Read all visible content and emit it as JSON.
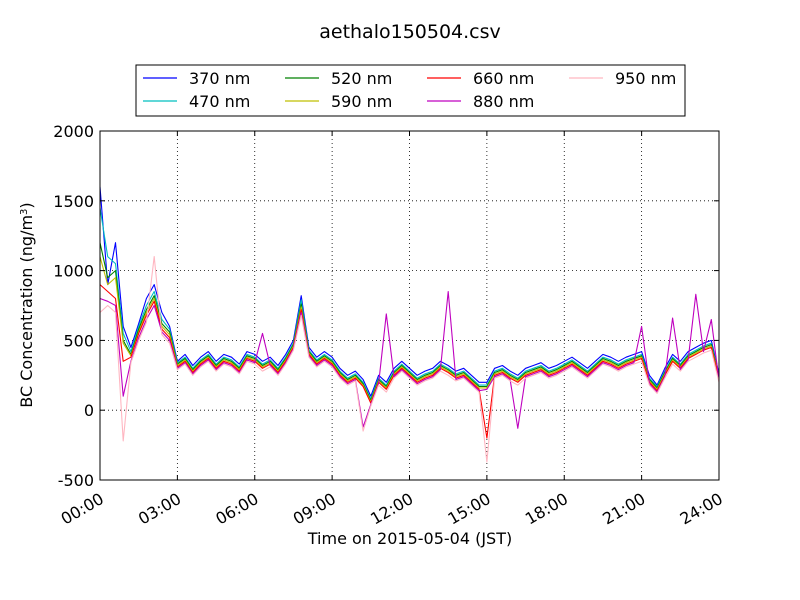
{
  "chart_data": {
    "type": "line",
    "title": "aethalo150504.csv",
    "xlabel": "Time on 2015-05-04 (JST)",
    "ylabel": "BC Concentration (ng/m",
    "ylabel_sup": "3",
    "ylabel_tail": ")",
    "xlim": [
      0,
      24
    ],
    "ylim": [
      -500,
      2000
    ],
    "x_ticks": [
      0,
      3,
      6,
      9,
      12,
      15,
      18,
      21,
      24
    ],
    "x_tick_labels": [
      "00:00",
      "03:00",
      "06:00",
      "09:00",
      "12:00",
      "15:00",
      "18:00",
      "21:00",
      "24:00"
    ],
    "y_ticks": [
      -500,
      0,
      500,
      1000,
      1500,
      2000
    ],
    "y_tick_labels": [
      "-500",
      "0",
      "500",
      "1000",
      "1500",
      "2000"
    ],
    "grid": true,
    "legend_position": "top-center",
    "x": [
      0.0,
      0.3,
      0.6,
      0.9,
      1.2,
      1.5,
      1.8,
      2.1,
      2.4,
      2.7,
      3.0,
      3.3,
      3.6,
      3.9,
      4.2,
      4.5,
      4.8,
      5.1,
      5.4,
      5.7,
      6.0,
      6.3,
      6.6,
      6.9,
      7.2,
      7.5,
      7.8,
      8.1,
      8.4,
      8.7,
      9.0,
      9.3,
      9.6,
      9.9,
      10.2,
      10.5,
      10.8,
      11.1,
      11.4,
      11.7,
      12.0,
      12.3,
      12.6,
      12.9,
      13.2,
      13.5,
      13.8,
      14.1,
      14.4,
      14.7,
      15.0,
      15.3,
      15.6,
      15.9,
      16.2,
      16.5,
      16.8,
      17.1,
      17.4,
      17.7,
      18.0,
      18.3,
      18.6,
      18.9,
      19.2,
      19.5,
      19.8,
      20.1,
      20.4,
      20.7,
      21.0,
      21.3,
      21.6,
      21.9,
      22.2,
      22.5,
      22.8,
      23.1,
      23.4,
      23.7,
      24.0
    ],
    "series": [
      {
        "name": "370 nm",
        "color": "#0000ff",
        "values": [
          1600,
          900,
          1200,
          600,
          450,
          620,
          800,
          900,
          700,
          600,
          350,
          400,
          320,
          380,
          420,
          350,
          400,
          380,
          330,
          420,
          400,
          350,
          380,
          320,
          400,
          500,
          820,
          450,
          380,
          420,
          380,
          300,
          250,
          280,
          220,
          100,
          250,
          200,
          300,
          350,
          300,
          250,
          280,
          300,
          350,
          320,
          280,
          300,
          250,
          200,
          200,
          300,
          320,
          280,
          250,
          300,
          320,
          340,
          300,
          320,
          350,
          380,
          340,
          300,
          350,
          400,
          380,
          350,
          380,
          400,
          420,
          250,
          180,
          300,
          400,
          350,
          420,
          450,
          480,
          500,
          260
        ]
      },
      {
        "name": "470 nm",
        "color": "#00bfbf",
        "values": [
          1450,
          1100,
          1050,
          550,
          420,
          600,
          750,
          850,
          650,
          580,
          340,
          380,
          300,
          360,
          400,
          330,
          380,
          360,
          310,
          400,
          380,
          330,
          360,
          300,
          380,
          480,
          790,
          430,
          360,
          400,
          360,
          280,
          230,
          260,
          200,
          80,
          230,
          180,
          280,
          330,
          280,
          230,
          260,
          280,
          330,
          300,
          260,
          280,
          230,
          180,
          180,
          280,
          300,
          260,
          230,
          280,
          300,
          320,
          280,
          300,
          330,
          360,
          320,
          280,
          330,
          380,
          360,
          330,
          360,
          380,
          400,
          230,
          170,
          280,
          380,
          330,
          400,
          430,
          460,
          480,
          250
        ]
      },
      {
        "name": "520 nm",
        "color": "#008000",
        "values": [
          1200,
          950,
          1000,
          500,
          400,
          580,
          720,
          820,
          620,
          560,
          330,
          370,
          290,
          350,
          390,
          320,
          370,
          350,
          300,
          390,
          370,
          320,
          350,
          290,
          370,
          470,
          760,
          420,
          350,
          390,
          350,
          270,
          220,
          250,
          190,
          70,
          220,
          170,
          270,
          320,
          270,
          220,
          250,
          270,
          320,
          290,
          250,
          270,
          220,
          170,
          170,
          270,
          290,
          250,
          220,
          270,
          290,
          310,
          270,
          290,
          320,
          350,
          310,
          270,
          320,
          370,
          350,
          320,
          350,
          370,
          390,
          220,
          160,
          270,
          370,
          320,
          390,
          420,
          450,
          470,
          240
        ]
      },
      {
        "name": "590 nm",
        "color": "#bfbf00",
        "values": [
          1100,
          900,
          950,
          480,
          390,
          560,
          700,
          800,
          600,
          540,
          320,
          360,
          280,
          340,
          380,
          310,
          360,
          340,
          290,
          380,
          360,
          310,
          340,
          280,
          360,
          460,
          740,
          410,
          340,
          380,
          340,
          260,
          210,
          240,
          180,
          60,
          210,
          160,
          260,
          310,
          260,
          210,
          240,
          260,
          310,
          280,
          240,
          260,
          210,
          160,
          160,
          260,
          280,
          240,
          210,
          260,
          280,
          300,
          260,
          280,
          310,
          340,
          300,
          260,
          310,
          360,
          340,
          310,
          340,
          360,
          380,
          210,
          150,
          260,
          360,
          310,
          380,
          410,
          440,
          460,
          230
        ]
      },
      {
        "name": "660 nm",
        "color": "#ff0000",
        "values": [
          900,
          850,
          800,
          350,
          380,
          550,
          680,
          780,
          580,
          520,
          310,
          350,
          270,
          330,
          370,
          300,
          350,
          330,
          280,
          370,
          350,
          300,
          330,
          270,
          350,
          450,
          720,
          400,
          330,
          370,
          330,
          250,
          200,
          230,
          170,
          50,
          200,
          150,
          250,
          300,
          250,
          200,
          230,
          250,
          300,
          270,
          230,
          250,
          200,
          150,
          -200,
          250,
          270,
          230,
          200,
          250,
          270,
          290,
          250,
          270,
          300,
          330,
          290,
          250,
          300,
          350,
          330,
          300,
          330,
          350,
          370,
          200,
          140,
          250,
          350,
          300,
          370,
          400,
          430,
          450,
          220
        ]
      },
      {
        "name": "880 nm",
        "color": "#bf00bf",
        "values": [
          800,
          780,
          750,
          100,
          350,
          520,
          650,
          750,
          560,
          500,
          300,
          340,
          260,
          320,
          360,
          290,
          340,
          320,
          270,
          360,
          340,
          550,
          320,
          260,
          340,
          440,
          700,
          390,
          320,
          360,
          320,
          240,
          190,
          220,
          -120,
          40,
          190,
          690,
          240,
          290,
          240,
          190,
          220,
          240,
          290,
          850,
          220,
          240,
          190,
          140,
          150,
          240,
          260,
          220,
          -130,
          240,
          260,
          280,
          240,
          260,
          290,
          320,
          280,
          240,
          290,
          340,
          320,
          290,
          320,
          340,
          600,
          190,
          130,
          240,
          660,
          290,
          360,
          830,
          420,
          650,
          210
        ]
      },
      {
        "name": "950 nm",
        "color": "#ffb6c1",
        "values": [
          700,
          750,
          700,
          -220,
          340,
          500,
          630,
          1100,
          540,
          480,
          290,
          330,
          250,
          310,
          350,
          280,
          330,
          310,
          260,
          350,
          330,
          280,
          310,
          250,
          330,
          430,
          680,
          380,
          310,
          350,
          310,
          230,
          180,
          210,
          -150,
          30,
          180,
          130,
          230,
          280,
          230,
          180,
          210,
          230,
          280,
          250,
          210,
          230,
          180,
          130,
          -370,
          230,
          250,
          210,
          180,
          230,
          250,
          270,
          230,
          250,
          280,
          310,
          270,
          230,
          280,
          330,
          310,
          280,
          310,
          330,
          350,
          180,
          120,
          230,
          330,
          280,
          350,
          380,
          410,
          430,
          200
        ]
      }
    ]
  }
}
